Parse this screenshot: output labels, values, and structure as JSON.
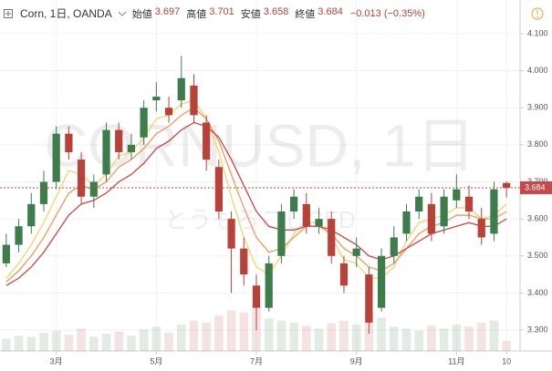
{
  "header": {
    "symbol": "Corn, 1日, OANDA",
    "stats": [
      {
        "label": "始値",
        "value": "3.697"
      },
      {
        "label": "高値",
        "value": "3.701"
      },
      {
        "label": "安値",
        "value": "3.658"
      },
      {
        "label": "終値",
        "value": "3.684"
      }
    ],
    "change": "−0.013 (−0.35%)"
  },
  "watermark": {
    "line1": "CORNUSD, 1日",
    "line2": "とうもろこしCFD"
  },
  "chart_data": {
    "type": "candlestick",
    "categories": [
      null,
      null,
      null,
      null,
      "3月",
      null,
      null,
      null,
      null,
      null,
      null,
      null,
      "5月",
      null,
      null,
      null,
      null,
      null,
      null,
      null,
      "7月",
      null,
      null,
      null,
      null,
      null,
      null,
      null,
      "9月",
      null,
      null,
      null,
      null,
      null,
      null,
      null,
      "11月",
      null,
      null,
      null,
      "10"
    ],
    "open": [
      3.48,
      3.53,
      3.58,
      3.64,
      3.7,
      3.83,
      3.76,
      3.66,
      3.72,
      3.84,
      3.78,
      3.82,
      3.92,
      3.9,
      3.92,
      3.96,
      3.86,
      3.74,
      3.6,
      3.52,
      3.42,
      3.36,
      3.5,
      3.62,
      3.64,
      3.58,
      3.6,
      3.48,
      3.5,
      3.45,
      3.36,
      3.5,
      3.56,
      3.62,
      3.64,
      3.58,
      3.65,
      3.66,
      3.6,
      3.56,
      3.697
    ],
    "high": [
      3.56,
      3.6,
      3.67,
      3.73,
      3.85,
      3.85,
      3.78,
      3.72,
      3.86,
      3.86,
      3.83,
      3.92,
      3.97,
      3.93,
      4.04,
      3.99,
      3.88,
      3.76,
      3.62,
      3.55,
      3.45,
      3.5,
      3.64,
      3.68,
      3.67,
      3.63,
      3.62,
      3.5,
      3.55,
      3.47,
      3.52,
      3.58,
      3.64,
      3.68,
      3.67,
      3.68,
      3.72,
      3.69,
      3.63,
      3.7,
      3.701
    ],
    "low": [
      3.47,
      3.51,
      3.56,
      3.62,
      3.68,
      3.76,
      3.64,
      3.63,
      3.7,
      3.76,
      3.76,
      3.8,
      3.89,
      3.86,
      3.9,
      3.86,
      3.73,
      3.6,
      3.4,
      3.42,
      3.3,
      3.35,
      3.48,
      3.6,
      3.56,
      3.56,
      3.48,
      3.4,
      3.47,
      3.29,
      3.35,
      3.48,
      3.54,
      3.6,
      3.54,
      3.56,
      3.63,
      3.6,
      3.53,
      3.54,
      3.658
    ],
    "close": [
      3.53,
      3.58,
      3.64,
      3.7,
      3.83,
      3.78,
      3.66,
      3.7,
      3.84,
      3.78,
      3.8,
      3.9,
      3.93,
      3.88,
      3.98,
      3.88,
      3.76,
      3.62,
      3.52,
      3.45,
      3.36,
      3.48,
      3.62,
      3.66,
      3.58,
      3.6,
      3.5,
      3.42,
      3.52,
      3.32,
      3.5,
      3.55,
      3.62,
      3.66,
      3.56,
      3.66,
      3.68,
      3.62,
      3.55,
      3.68,
      3.684
    ],
    "volume": [
      12,
      15,
      14,
      18,
      20,
      16,
      22,
      14,
      17,
      19,
      15,
      21,
      24,
      18,
      26,
      30,
      28,
      35,
      40,
      38,
      45,
      32,
      30,
      28,
      25,
      22,
      27,
      30,
      26,
      38,
      33,
      24,
      22,
      20,
      25,
      22,
      26,
      24,
      28,
      30,
      10
    ],
    "up_color": "#3d7d4c",
    "down_color": "#b8413a",
    "series": [
      {
        "color": "#f3d36b",
        "values": [
          3.44,
          3.48,
          3.53,
          3.59,
          3.66,
          3.73,
          3.72,
          3.69,
          3.72,
          3.77,
          3.78,
          3.82,
          3.87,
          3.88,
          3.91,
          3.92,
          3.87,
          3.78,
          3.66,
          3.55,
          3.47,
          3.45,
          3.5,
          3.56,
          3.59,
          3.59,
          3.55,
          3.49,
          3.48,
          3.44,
          3.44,
          3.47,
          3.54,
          3.59,
          3.6,
          3.61,
          3.63,
          3.63,
          3.6,
          3.61,
          3.64
        ]
      },
      {
        "color": "#ec9a5c",
        "values": [
          3.43,
          3.46,
          3.5,
          3.55,
          3.61,
          3.67,
          3.69,
          3.68,
          3.7,
          3.74,
          3.76,
          3.79,
          3.83,
          3.85,
          3.88,
          3.9,
          3.87,
          3.81,
          3.72,
          3.63,
          3.55,
          3.51,
          3.52,
          3.55,
          3.58,
          3.58,
          3.56,
          3.52,
          3.5,
          3.47,
          3.46,
          3.48,
          3.52,
          3.56,
          3.58,
          3.59,
          3.61,
          3.61,
          3.6,
          3.6,
          3.62
        ]
      },
      {
        "color": "#c8474a",
        "values": [
          3.42,
          3.44,
          3.47,
          3.51,
          3.56,
          3.61,
          3.64,
          3.65,
          3.67,
          3.7,
          3.72,
          3.75,
          3.79,
          3.81,
          3.84,
          3.86,
          3.85,
          3.82,
          3.76,
          3.69,
          3.62,
          3.58,
          3.57,
          3.57,
          3.58,
          3.58,
          3.57,
          3.55,
          3.53,
          3.5,
          3.49,
          3.5,
          3.52,
          3.54,
          3.56,
          3.57,
          3.58,
          3.59,
          3.58,
          3.58,
          3.6
        ]
      }
    ],
    "ylim": [
      3.2435,
      4.1909
    ],
    "yticks": [
      {
        "value": 3.3,
        "label": "3.300"
      },
      {
        "value": 3.4,
        "label": "3.400"
      },
      {
        "value": 3.5,
        "label": "3.500"
      },
      {
        "value": 3.6,
        "label": "3.600"
      },
      {
        "value": 3.7,
        "label": "3.700"
      },
      {
        "value": 3.8,
        "label": "3.800"
      },
      {
        "value": 3.9,
        "label": "3.900"
      },
      {
        "value": 4.0,
        "label": "4.000"
      },
      {
        "value": 4.1,
        "label": "4.100"
      }
    ],
    "last_price": {
      "value": 3.684,
      "label": "3.684",
      "color": "#c8474a"
    },
    "grid": true
  }
}
